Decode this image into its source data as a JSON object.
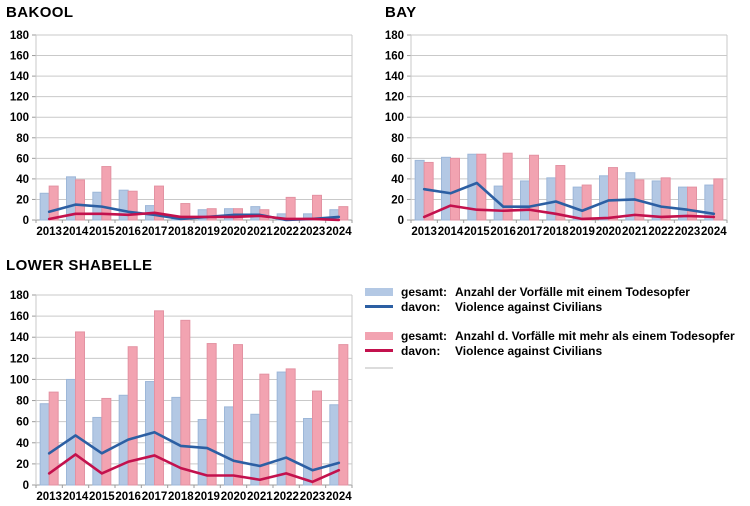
{
  "page": {
    "background": "#ffffff"
  },
  "colors": {
    "bar_single": "#b3c8e4",
    "bar_single_edge": "#9db7d8",
    "line_single": "#2c5fa3",
    "bar_multi": "#f2a3b1",
    "bar_multi_edge": "#e392a2",
    "line_multi": "#c3114d",
    "grid": "#c9c9c9",
    "axis": "#9b9b9b",
    "legend_extra": "#dcdcdc",
    "text": "#000000"
  },
  "legend": {
    "items": [
      {
        "swatch": "bar",
        "color_key": "bar_single",
        "prefix": "gesamt:",
        "label": "Anzahl der Vorfälle mit einem Todesopfer"
      },
      {
        "swatch": "line",
        "color_key": "line_single",
        "prefix": "davon:",
        "label": "Violence against Civilians"
      },
      {
        "swatch": "bar",
        "color_key": "bar_multi",
        "prefix": "gesamt:",
        "label": "Anzahl d. Vorfälle mit mehr als einem Todesopfer"
      },
      {
        "swatch": "line",
        "color_key": "line_multi",
        "prefix": "davon:",
        "label": "Violence against Civilians"
      }
    ]
  },
  "chart_data": [
    {
      "type": "bar",
      "title": "BAKOOL",
      "categories": [
        "2013",
        "2014",
        "2015",
        "2016",
        "2017",
        "2018",
        "2019",
        "2020",
        "2021",
        "2022",
        "2023",
        "2024"
      ],
      "series": [
        {
          "name": "gesamt: Anzahl der Vorfälle mit einem Todesopfer",
          "type": "bar",
          "color_key": "bar_single",
          "values": [
            26,
            42,
            27,
            29,
            14,
            2,
            10,
            11,
            13,
            6,
            6,
            10
          ]
        },
        {
          "name": "gesamt: Anzahl d. Vorfälle mit mehr als einem Todesopfer",
          "type": "bar",
          "color_key": "bar_multi",
          "values": [
            33,
            39,
            52,
            28,
            33,
            16,
            11,
            11,
            10,
            22,
            24,
            13
          ]
        },
        {
          "name": "davon: Violence against Civilians",
          "type": "line",
          "color_key": "line_single",
          "values": [
            8,
            15,
            13,
            8,
            5,
            1,
            3,
            5,
            5,
            0,
            1,
            3
          ]
        },
        {
          "name": "davon: Violence against Civilians",
          "type": "line",
          "color_key": "line_multi",
          "values": [
            1,
            6,
            6,
            5,
            7,
            3,
            3,
            3,
            4,
            1,
            1,
            0
          ]
        }
      ],
      "xlabel": "",
      "ylabel": "",
      "ylim": [
        0,
        180
      ],
      "ytick_step": 20,
      "grid": true,
      "legend_position": "shared-bottom-right"
    },
    {
      "type": "bar",
      "title": "BAY",
      "categories": [
        "2013",
        "2014",
        "2015",
        "2016",
        "2017",
        "2018",
        "2019",
        "2020",
        "2021",
        "2022",
        "2023",
        "2024"
      ],
      "series": [
        {
          "name": "gesamt: Anzahl der Vorfälle mit einem Todesopfer",
          "type": "bar",
          "color_key": "bar_single",
          "values": [
            58,
            61,
            64,
            33,
            38,
            41,
            32,
            43,
            46,
            38,
            32,
            34
          ]
        },
        {
          "name": "gesamt: Anzahl d. Vorfälle mit mehr als einem Todesopfer",
          "type": "bar",
          "color_key": "bar_multi",
          "values": [
            56,
            60,
            64,
            65,
            63,
            53,
            34,
            51,
            39,
            41,
            32,
            40
          ]
        },
        {
          "name": "davon: Violence against Civilians",
          "type": "line",
          "color_key": "line_single",
          "values": [
            30,
            26,
            36,
            13,
            13,
            18,
            9,
            19,
            20,
            13,
            10,
            6
          ]
        },
        {
          "name": "davon: Violence against Civilians",
          "type": "line",
          "color_key": "line_multi",
          "values": [
            3,
            14,
            10,
            9,
            10,
            6,
            1,
            2,
            5,
            3,
            4,
            3
          ]
        }
      ],
      "xlabel": "",
      "ylabel": "",
      "ylim": [
        0,
        180
      ],
      "ytick_step": 20,
      "grid": true,
      "legend_position": "shared-bottom-right"
    },
    {
      "type": "bar",
      "title": "LOWER SHABELLE",
      "categories": [
        "2013",
        "2014",
        "2015",
        "2016",
        "2017",
        "2018",
        "2019",
        "2020",
        "2021",
        "2022",
        "2023",
        "2024"
      ],
      "series": [
        {
          "name": "gesamt: Anzahl der Vorfälle mit einem Todesopfer",
          "type": "bar",
          "color_key": "bar_single",
          "values": [
            77,
            100,
            64,
            85,
            98,
            83,
            62,
            74,
            67,
            107,
            63,
            76
          ]
        },
        {
          "name": "gesamt: Anzahl d. Vorfälle mit mehr als einem Todesopfer",
          "type": "bar",
          "color_key": "bar_multi",
          "values": [
            88,
            145,
            82,
            131,
            165,
            156,
            134,
            133,
            105,
            110,
            89,
            133
          ]
        },
        {
          "name": "davon: Violence against Civilians",
          "type": "line",
          "color_key": "line_single",
          "values": [
            30,
            47,
            30,
            43,
            50,
            37,
            35,
            23,
            18,
            26,
            14,
            21
          ]
        },
        {
          "name": "davon: Violence against Civilians",
          "type": "line",
          "color_key": "line_multi",
          "values": [
            11,
            29,
            11,
            22,
            28,
            16,
            9,
            9,
            5,
            11,
            3,
            14
          ]
        }
      ],
      "xlabel": "",
      "ylabel": "",
      "ylim": [
        0,
        180
      ],
      "ytick_step": 20,
      "grid": true,
      "legend_position": "shared-bottom-right"
    }
  ]
}
